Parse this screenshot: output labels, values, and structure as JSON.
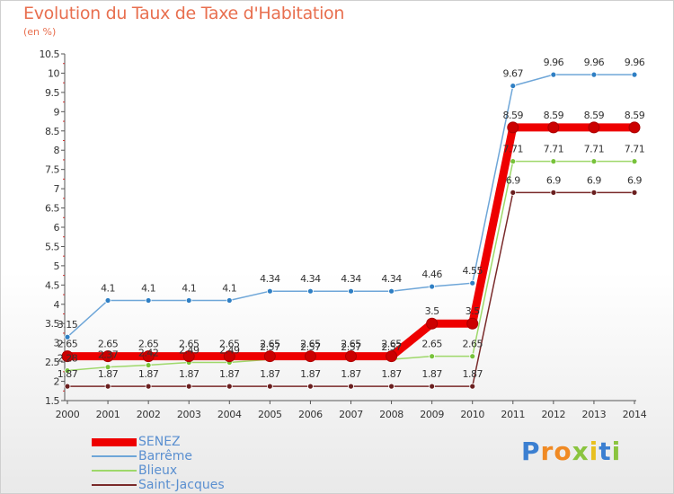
{
  "title": "Evolution du Taux de Taxe d'Habitation",
  "subtitle": "(en %)",
  "logo": {
    "letters": [
      "P",
      "r",
      "o",
      "x",
      "i",
      "t",
      "i"
    ],
    "colors": [
      "#3b7fd1",
      "#f08a24",
      "#f08a24",
      "#8ac43f",
      "#e8c020",
      "#3b7fd1",
      "#8ac43f"
    ]
  },
  "chart_data": {
    "type": "line",
    "x": [
      "2000",
      "2001",
      "2002",
      "2003",
      "2004",
      "2005",
      "2006",
      "2007",
      "2008",
      "2009",
      "2010",
      "2011",
      "2012",
      "2013",
      "2014"
    ],
    "yticks": [
      "1.5",
      "2",
      "2.5",
      "3",
      "3.5",
      "4",
      "4.5",
      "5",
      "5.5",
      "6",
      "6.5",
      "7",
      "7.5",
      "8",
      "8.5",
      "9",
      "9.5",
      "10",
      "10.5"
    ],
    "ylim": [
      1.5,
      10.5
    ],
    "grid": false,
    "legend_position": "bottom-left",
    "series": [
      {
        "name": "SENEZ",
        "color": "#ee0000",
        "point_color": "#cc0000",
        "width": 9,
        "r": 6,
        "values": [
          2.65,
          2.65,
          2.65,
          2.65,
          2.65,
          2.65,
          2.65,
          2.65,
          2.65,
          3.5,
          3.5,
          8.59,
          8.59,
          8.59,
          8.59
        ],
        "labels": [
          "2.65",
          "2.65",
          "2.65",
          "2.65",
          "2.65",
          "2.65",
          "2.65",
          "2.65",
          "2.65",
          "3.5",
          "3.5",
          "8.59",
          "8.59",
          "8.59",
          "8.59"
        ]
      },
      {
        "name": "Barrême",
        "color": "#6ea6d8",
        "point_color": "#2f7fc4",
        "width": 1.5,
        "r": 3,
        "values": [
          3.15,
          4.1,
          4.1,
          4.1,
          4.1,
          4.34,
          4.34,
          4.34,
          4.34,
          4.46,
          4.55,
          9.67,
          9.96,
          9.96,
          9.96
        ],
        "labels": [
          "3.15",
          "4.1",
          "4.1",
          "4.1",
          "4.1",
          "4.34",
          "4.34",
          "4.34",
          "4.34",
          "4.46",
          "4.55",
          "9.67",
          "9.96",
          "9.96",
          "9.96"
        ]
      },
      {
        "name": "Blieux",
        "color": "#9ed86a",
        "point_color": "#77c23a",
        "width": 1.5,
        "r": 3,
        "values": [
          2.28,
          2.37,
          2.42,
          2.49,
          2.49,
          2.57,
          2.57,
          2.57,
          2.57,
          2.65,
          2.65,
          7.71,
          7.71,
          7.71,
          7.71
        ],
        "labels": [
          "2.28",
          "2.37",
          "2.42",
          "2.49",
          "2.49",
          "2.57",
          "2.57",
          "2.57",
          "2.57",
          "2.65",
          "2.65",
          "7.71",
          "7.71",
          "7.71",
          "7.71"
        ]
      },
      {
        "name": "Saint-Jacques",
        "color": "#7a2a2a",
        "point_color": "#6a1f1f",
        "width": 1.5,
        "r": 3,
        "values": [
          1.87,
          1.87,
          1.87,
          1.87,
          1.87,
          1.87,
          1.87,
          1.87,
          1.87,
          1.87,
          1.87,
          6.9,
          6.9,
          6.9,
          6.9
        ],
        "labels": [
          "1.87",
          "1.87",
          "1.87",
          "1.87",
          "1.87",
          "1.87",
          "1.87",
          "1.87",
          "1.87",
          "1.87",
          "1.87",
          "6.9",
          "6.9",
          "6.9",
          "6.9"
        ]
      }
    ]
  }
}
